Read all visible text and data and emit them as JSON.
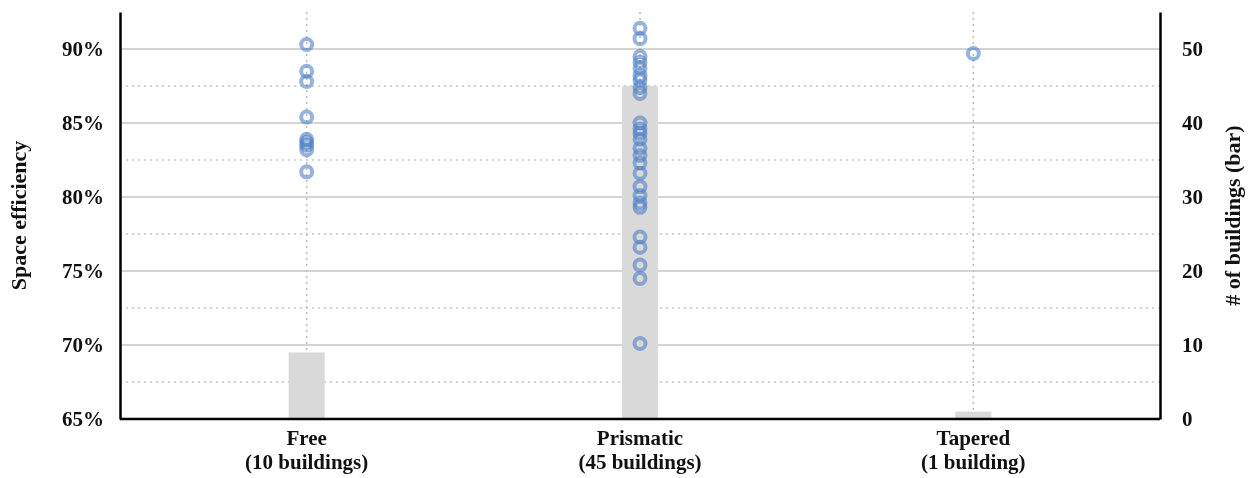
{
  "chart_data": {
    "type": "scatter",
    "ylabel": "Space efficiency",
    "y2label": "# of buildings (bar)",
    "categories": [
      "Free\n(10 buildings)",
      "Prismatic\n(45 buildings)",
      "Tapered\n(1 building)"
    ],
    "ylim": [
      65,
      92.5
    ],
    "yticks": [
      {
        "value": 65,
        "label": "65%"
      },
      {
        "value": 67.5,
        "label": null
      },
      {
        "value": 70,
        "label": "70%"
      },
      {
        "value": 72.5,
        "label": null
      },
      {
        "value": 75,
        "label": "75%"
      },
      {
        "value": 77.5,
        "label": null
      },
      {
        "value": 80,
        "label": "80%"
      },
      {
        "value": 82.5,
        "label": null
      },
      {
        "value": 85,
        "label": "85%"
      },
      {
        "value": 87.5,
        "label": null
      },
      {
        "value": 90,
        "label": "90%"
      }
    ],
    "y2lim": [
      0,
      55
    ],
    "y2ticks": [
      0,
      10,
      20,
      30,
      40,
      50
    ],
    "grid": true,
    "marker": "circle",
    "series": [
      {
        "type": "bar",
        "axis": "y2",
        "color": "#d9d9d9",
        "values": [
          9,
          45,
          1
        ]
      },
      {
        "color": "#4f81c7",
        "x": [
          "Free\n(10 buildings)",
          "Free\n(10 buildings)",
          "Free\n(10 buildings)",
          "Free\n(10 buildings)",
          "Free\n(10 buildings)",
          "Free\n(10 buildings)",
          "Free\n(10 buildings)",
          "Free\n(10 buildings)",
          "Free\n(10 buildings)",
          "Prismatic\n(45 buildings)",
          "Prismatic\n(45 buildings)",
          "Prismatic\n(45 buildings)",
          "Prismatic\n(45 buildings)",
          "Prismatic\n(45 buildings)",
          "Prismatic\n(45 buildings)",
          "Prismatic\n(45 buildings)",
          "Prismatic\n(45 buildings)",
          "Prismatic\n(45 buildings)",
          "Prismatic\n(45 buildings)",
          "Prismatic\n(45 buildings)",
          "Prismatic\n(45 buildings)",
          "Prismatic\n(45 buildings)",
          "Prismatic\n(45 buildings)",
          "Prismatic\n(45 buildings)",
          "Prismatic\n(45 buildings)",
          "Prismatic\n(45 buildings)",
          "Prismatic\n(45 buildings)",
          "Prismatic\n(45 buildings)",
          "Prismatic\n(45 buildings)",
          "Prismatic\n(45 buildings)",
          "Prismatic\n(45 buildings)",
          "Prismatic\n(45 buildings)",
          "Prismatic\n(45 buildings)",
          "Prismatic\n(45 buildings)",
          "Prismatic\n(45 buildings)",
          "Tapered\n(1 building)"
        ],
        "values": [
          90.3,
          88.5,
          87.8,
          85.4,
          83.9,
          83.7,
          83.5,
          83.2,
          81.7,
          91.4,
          90.7,
          89.5,
          89.1,
          88.7,
          88.2,
          87.9,
          87.4,
          87.0,
          85.0,
          84.6,
          84.3,
          83.9,
          83.3,
          82.8,
          82.3,
          81.6,
          80.7,
          80.1,
          79.6,
          79.3,
          77.3,
          76.6,
          75.4,
          74.5,
          70.1,
          89.7
        ]
      }
    ]
  }
}
